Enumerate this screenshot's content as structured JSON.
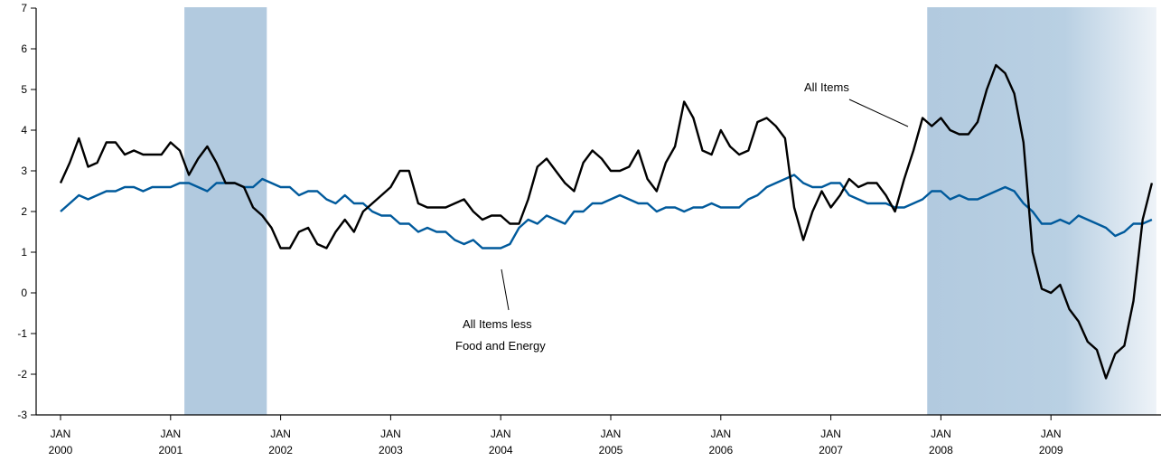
{
  "chart_data": {
    "type": "line",
    "title": "",
    "xlabel": "",
    "ylabel": "",
    "ylim": [
      -3,
      7
    ],
    "y_ticks": [
      "7",
      "6",
      "5",
      "4",
      "3",
      "2",
      "1",
      "0",
      "-1",
      "-2",
      "-3"
    ],
    "x_range": [
      "2000-01",
      "2009-12"
    ],
    "x_ticks": [
      {
        "month": "JAN",
        "year": "2000"
      },
      {
        "month": "JAN",
        "year": "2001"
      },
      {
        "month": "JAN",
        "year": "2002"
      },
      {
        "month": "JAN",
        "year": "2003"
      },
      {
        "month": "JAN",
        "year": "2004"
      },
      {
        "month": "JAN",
        "year": "2005"
      },
      {
        "month": "JAN",
        "year": "2006"
      },
      {
        "month": "JAN",
        "year": "2007"
      },
      {
        "month": "JAN",
        "year": "2008"
      },
      {
        "month": "JAN",
        "year": "2009"
      }
    ],
    "grid": false,
    "shaded_periods": [
      {
        "start": "2001-03",
        "end": "2001-11"
      },
      {
        "start": "2007-12",
        "end": "2009-12"
      }
    ],
    "series": [
      {
        "name": "All Items",
        "color": "#000000",
        "start": "2000-01",
        "values": [
          2.7,
          3.2,
          3.8,
          3.1,
          3.2,
          3.7,
          3.7,
          3.4,
          3.5,
          3.4,
          3.4,
          3.4,
          3.7,
          3.5,
          2.9,
          3.3,
          3.6,
          3.2,
          2.7,
          2.7,
          2.6,
          2.1,
          1.9,
          1.6,
          1.1,
          1.1,
          1.5,
          1.6,
          1.2,
          1.1,
          1.5,
          1.8,
          1.5,
          2.0,
          2.2,
          2.4,
          2.6,
          3.0,
          3.0,
          2.2,
          2.1,
          2.1,
          2.1,
          2.2,
          2.3,
          2.0,
          1.8,
          1.9,
          1.9,
          1.7,
          1.7,
          2.3,
          3.1,
          3.3,
          3.0,
          2.7,
          2.5,
          3.2,
          3.5,
          3.3,
          3.0,
          3.0,
          3.1,
          3.5,
          2.8,
          2.5,
          3.2,
          3.6,
          4.7,
          4.3,
          3.5,
          3.4,
          4.0,
          3.6,
          3.4,
          3.5,
          4.2,
          4.3,
          4.1,
          3.8,
          2.1,
          1.3,
          2.0,
          2.5,
          2.1,
          2.4,
          2.8,
          2.6,
          2.7,
          2.7,
          2.4,
          2.0,
          2.8,
          3.5,
          4.3,
          4.1,
          4.3,
          4.0,
          3.9,
          3.9,
          4.2,
          5.0,
          5.6,
          5.4,
          4.9,
          3.7,
          1.0,
          0.1,
          0.0,
          0.2,
          -0.4,
          -0.7,
          -1.2,
          -1.4,
          -2.1,
          -1.5,
          -1.3,
          -0.2,
          1.8,
          2.7
        ]
      },
      {
        "name": "All Items less Food and Energy",
        "color": "#005a9c",
        "start": "2000-01",
        "values": [
          2.0,
          2.2,
          2.4,
          2.3,
          2.4,
          2.5,
          2.5,
          2.6,
          2.6,
          2.5,
          2.6,
          2.6,
          2.6,
          2.7,
          2.7,
          2.6,
          2.5,
          2.7,
          2.7,
          2.7,
          2.6,
          2.6,
          2.8,
          2.7,
          2.6,
          2.6,
          2.4,
          2.5,
          2.5,
          2.3,
          2.2,
          2.4,
          2.2,
          2.2,
          2.0,
          1.9,
          1.9,
          1.7,
          1.7,
          1.5,
          1.6,
          1.5,
          1.5,
          1.3,
          1.2,
          1.3,
          1.1,
          1.1,
          1.1,
          1.2,
          1.6,
          1.8,
          1.7,
          1.9,
          1.8,
          1.7,
          2.0,
          2.0,
          2.2,
          2.2,
          2.3,
          2.4,
          2.3,
          2.2,
          2.2,
          2.0,
          2.1,
          2.1,
          2.0,
          2.1,
          2.1,
          2.2,
          2.1,
          2.1,
          2.1,
          2.3,
          2.4,
          2.6,
          2.7,
          2.8,
          2.9,
          2.7,
          2.6,
          2.6,
          2.7,
          2.7,
          2.4,
          2.3,
          2.2,
          2.2,
          2.2,
          2.1,
          2.1,
          2.2,
          2.3,
          2.5,
          2.5,
          2.3,
          2.4,
          2.3,
          2.3,
          2.4,
          2.5,
          2.6,
          2.5,
          2.2,
          2.0,
          1.7,
          1.7,
          1.8,
          1.7,
          1.9,
          1.8,
          1.7,
          1.6,
          1.4,
          1.5,
          1.7,
          1.7,
          1.8
        ]
      }
    ],
    "annotations": {
      "all_items": "All Items",
      "core_line1": "All Items less",
      "core_line2": "Food and Energy"
    }
  }
}
